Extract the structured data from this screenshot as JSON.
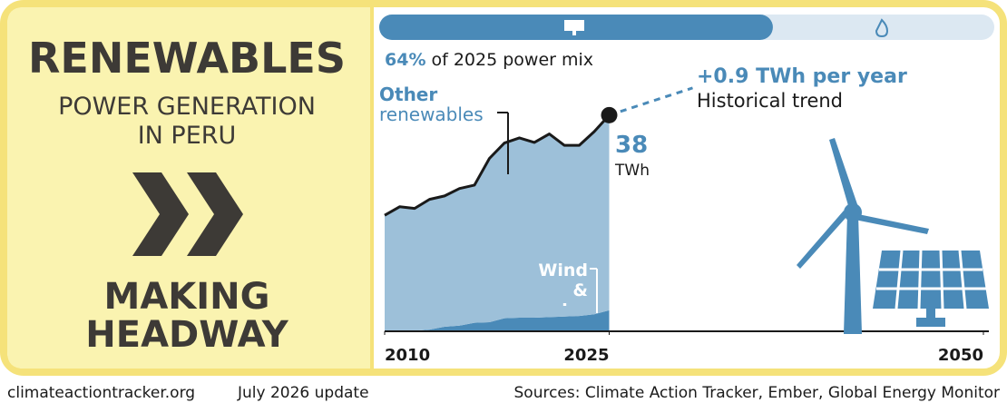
{
  "header": {
    "title": "RENEWABLES",
    "subtitle_lines": [
      "POWER GENERATION",
      "IN PERU"
    ],
    "rating_lines": [
      "MAKING",
      "HEADWAY"
    ]
  },
  "footer": {
    "site": "climateactiontracker.org",
    "update": "July 2026 update",
    "sources": "Sources: Climate Action Tracker, Ember, Global Energy Monitor"
  },
  "chart_data": {
    "type": "area",
    "stacked": true,
    "x": [
      2010,
      2011,
      2012,
      2013,
      2014,
      2015,
      2016,
      2017,
      2018,
      2019,
      2020,
      2021,
      2022,
      2023,
      2024,
      2025
    ],
    "series": [
      {
        "name": "Wind & solar",
        "color": "#4a8ab8",
        "values": [
          0,
          0,
          0.1,
          0.3,
          0.8,
          1.0,
          1.5,
          1.6,
          2.3,
          2.4,
          2.4,
          2.5,
          2.6,
          2.7,
          3.0,
          3.7
        ]
      },
      {
        "name": "Other renewables",
        "color": "#9dc0d9",
        "values": [
          20.4,
          21.9,
          21.5,
          22.9,
          23.0,
          24.1,
          24.2,
          28.8,
          30.8,
          31.6,
          30.8,
          32.2,
          30.1,
          30.0,
          32.1,
          34.3
        ]
      }
    ],
    "line_color": "#1a1a1a",
    "end_value": 38,
    "end_unit": "TWh",
    "trend_label": "+0.9 TWh per year",
    "trend_note": "Historical trend",
    "xlim": [
      2010,
      2050
    ],
    "xticks": [
      2010,
      2025,
      2050
    ],
    "ylim": [
      0,
      45
    ],
    "mix_share": {
      "value": 64,
      "label": "64%"
    },
    "mix_text": "of 2025 power mix"
  }
}
